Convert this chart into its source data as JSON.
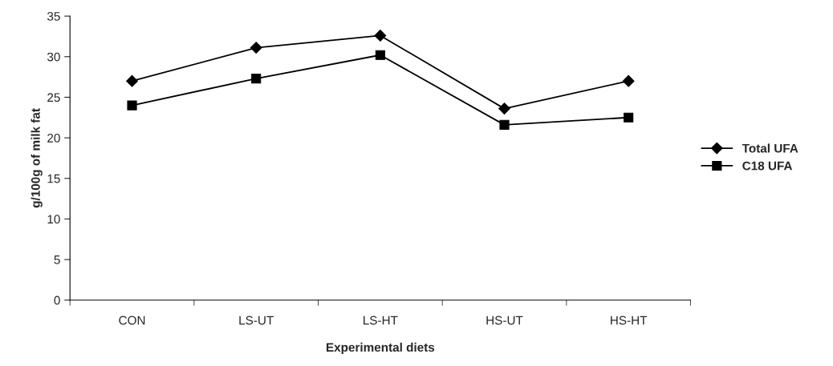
{
  "chart_data": {
    "type": "line",
    "xlabel": "Experimental diets",
    "ylabel": "g/100g of milk fat",
    "categories": [
      "CON",
      "LS-UT",
      "LS-HT",
      "HS-UT",
      "HS-HT"
    ],
    "series": [
      {
        "name": "Total UFA",
        "color": "#000000",
        "marker": "diamond",
        "values": [
          27.0,
          31.1,
          32.6,
          23.6,
          27.0
        ]
      },
      {
        "name": "C18 UFA",
        "color": "#000000",
        "marker": "square",
        "values": [
          24.0,
          27.3,
          30.2,
          21.6,
          22.5
        ]
      }
    ],
    "ylim": [
      0,
      35
    ],
    "yticks": [
      0,
      5,
      10,
      15,
      20,
      25,
      30,
      35
    ],
    "grid": false,
    "legend": "right",
    "line_style": "solid"
  }
}
